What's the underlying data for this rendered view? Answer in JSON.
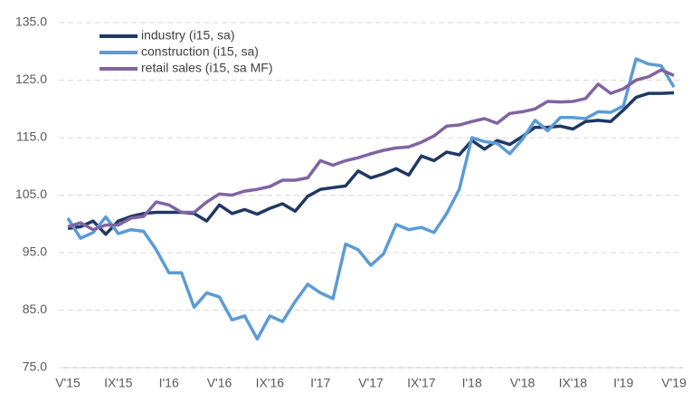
{
  "chart_data": {
    "type": "line",
    "categories": [
      "V'15",
      null,
      null,
      null,
      "IX'15",
      null,
      null,
      null,
      "I'16",
      null,
      null,
      null,
      "V'16",
      null,
      null,
      null,
      "IX'16",
      null,
      null,
      null,
      "I'17",
      null,
      null,
      null,
      "V'17",
      null,
      null,
      null,
      "IX'17",
      null,
      null,
      null,
      "I'18",
      null,
      null,
      null,
      "V'18",
      null,
      null,
      null,
      "IX'18",
      null,
      null,
      null,
      "I'19",
      null,
      null,
      null,
      "V'19"
    ],
    "series": [
      {
        "name": "industry (i15, sa)",
        "color": "#1f3864",
        "values": [
          99.2,
          99.5,
          100.5,
          98.2,
          100.5,
          101.3,
          101.8,
          102.0,
          102.0,
          102.0,
          101.8,
          100.5,
          103.3,
          101.8,
          102.5,
          101.7,
          102.7,
          103.5,
          102.2,
          104.8,
          106.0,
          106.3,
          106.6,
          109.2,
          108.0,
          108.7,
          109.6,
          108.5,
          111.8,
          111.0,
          112.5,
          112.0,
          114.5,
          113.0,
          114.5,
          113.8,
          115.2,
          116.8,
          116.8,
          117.0,
          116.5,
          117.8,
          118.0,
          117.8,
          119.8,
          122.0,
          122.7,
          122.7,
          122.8
        ]
      },
      {
        "name": "construction (i15, sa)",
        "color": "#5b9bd5",
        "values": [
          101.0,
          97.5,
          98.5,
          101.2,
          98.3,
          99.0,
          98.7,
          95.5,
          91.5,
          91.5,
          85.5,
          88.0,
          87.3,
          83.3,
          84.0,
          80.0,
          84.0,
          83.0,
          86.5,
          89.5,
          88.0,
          87.0,
          96.5,
          95.5,
          92.8,
          94.8,
          99.9,
          99.0,
          99.4,
          98.5,
          101.8,
          106.0,
          115.0,
          114.3,
          114.0,
          112.2,
          114.7,
          118.0,
          116.2,
          118.5,
          118.5,
          118.3,
          119.5,
          119.4,
          120.5,
          128.7,
          127.8,
          127.5,
          123.8
        ]
      },
      {
        "name": "retail sales (i15, sa MF)",
        "color": "#8064a2",
        "values": [
          99.5,
          100.2,
          99.0,
          99.8,
          99.8,
          101.0,
          101.3,
          103.8,
          103.3,
          102.0,
          102.0,
          103.8,
          105.2,
          105.0,
          105.7,
          106.0,
          106.5,
          107.6,
          107.6,
          108.0,
          111.0,
          110.2,
          111.0,
          111.5,
          112.2,
          112.8,
          113.2,
          113.4,
          114.2,
          115.3,
          117.0,
          117.2,
          117.8,
          118.3,
          117.5,
          119.2,
          119.5,
          120.0,
          121.3,
          121.2,
          121.3,
          121.8,
          124.3,
          122.7,
          123.5,
          125.0,
          125.6,
          126.8,
          125.8
        ]
      }
    ],
    "ylim": [
      75,
      135
    ],
    "yticks": [
      {
        "value": 75,
        "label": "75.0"
      },
      {
        "value": 85,
        "label": "85.0"
      },
      {
        "value": 95,
        "label": "95.0"
      },
      {
        "value": 105,
        "label": "105.0"
      },
      {
        "value": 115,
        "label": "115.0"
      },
      {
        "value": 125,
        "label": "125.0"
      },
      {
        "value": 135,
        "label": "135.0"
      }
    ],
    "grid": true,
    "legend": "top-left"
  }
}
